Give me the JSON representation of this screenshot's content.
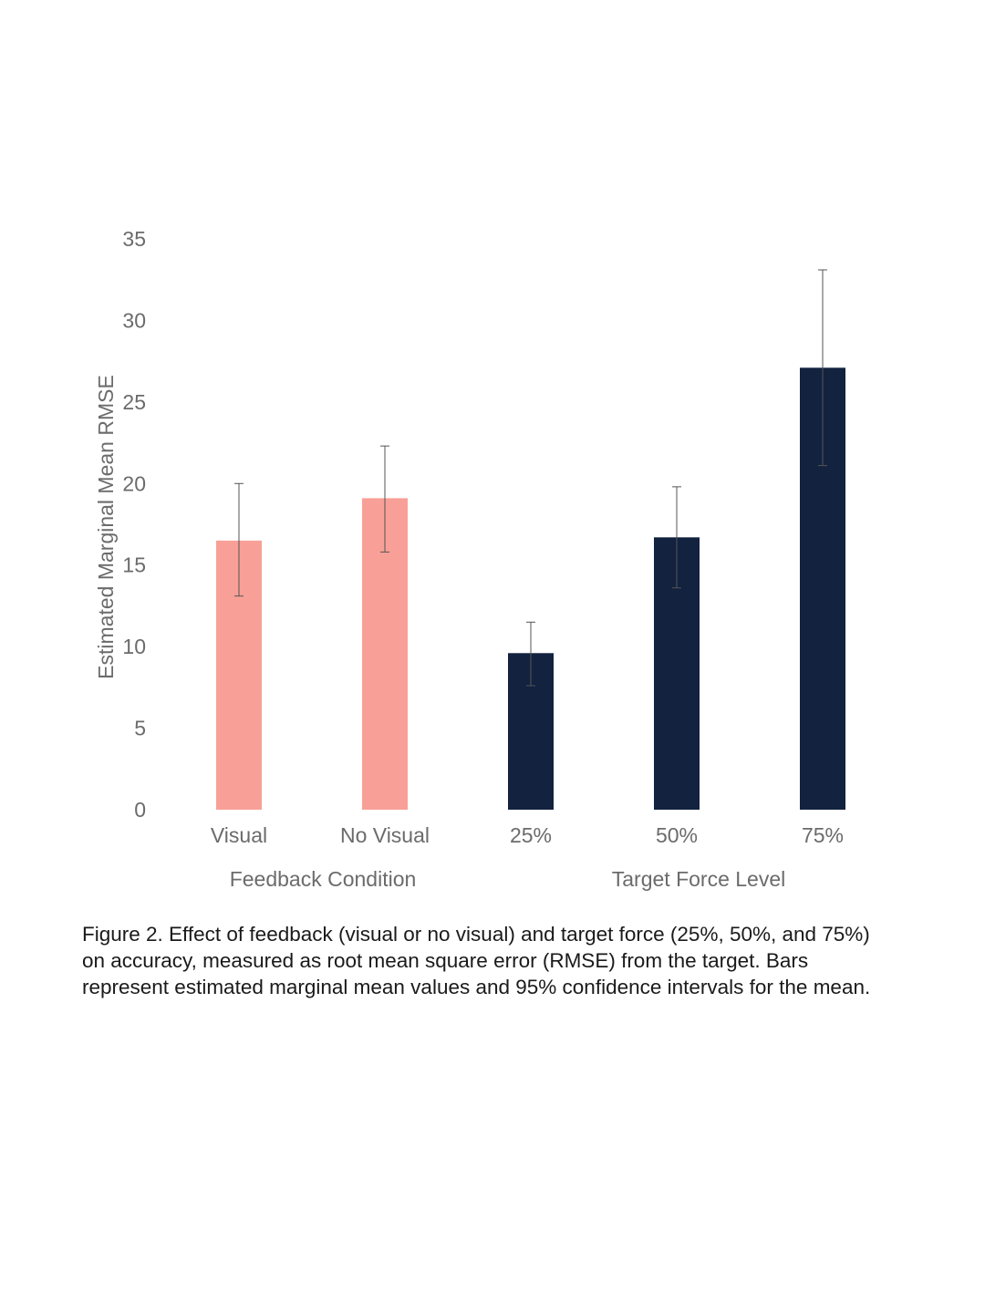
{
  "chart_data": {
    "type": "bar",
    "ylabel": "Estimated Marginal Mean RMSE",
    "xlabel": "",
    "title": "",
    "ylim": [
      0,
      35
    ],
    "yticks": [
      0,
      5,
      10,
      15,
      20,
      25,
      30,
      35
    ],
    "grid": false,
    "legend": "none",
    "groups": [
      {
        "label": "Feedback Condition",
        "color": "#f8a097",
        "categories": [
          "Visual",
          "No Visual"
        ],
        "values": [
          16.5,
          19.1
        ],
        "ci_lower": [
          13.1,
          15.8
        ],
        "ci_upper": [
          20.0,
          22.3
        ]
      },
      {
        "label": "Target Force Level",
        "color": "#12223f",
        "categories": [
          "25%",
          "50%",
          "75%"
        ],
        "values": [
          9.6,
          16.7,
          27.1
        ],
        "ci_lower": [
          7.6,
          13.6,
          21.1
        ],
        "ci_upper": [
          11.5,
          19.8,
          33.1
        ]
      }
    ]
  },
  "caption": "Figure 2. Effect of feedback (visual or no visual) and target force (25%, 50%, and 75%) on accuracy, measured as root mean square error (RMSE) from the target. Bars represent estimated marginal mean values and 95% confidence intervals for the mean."
}
